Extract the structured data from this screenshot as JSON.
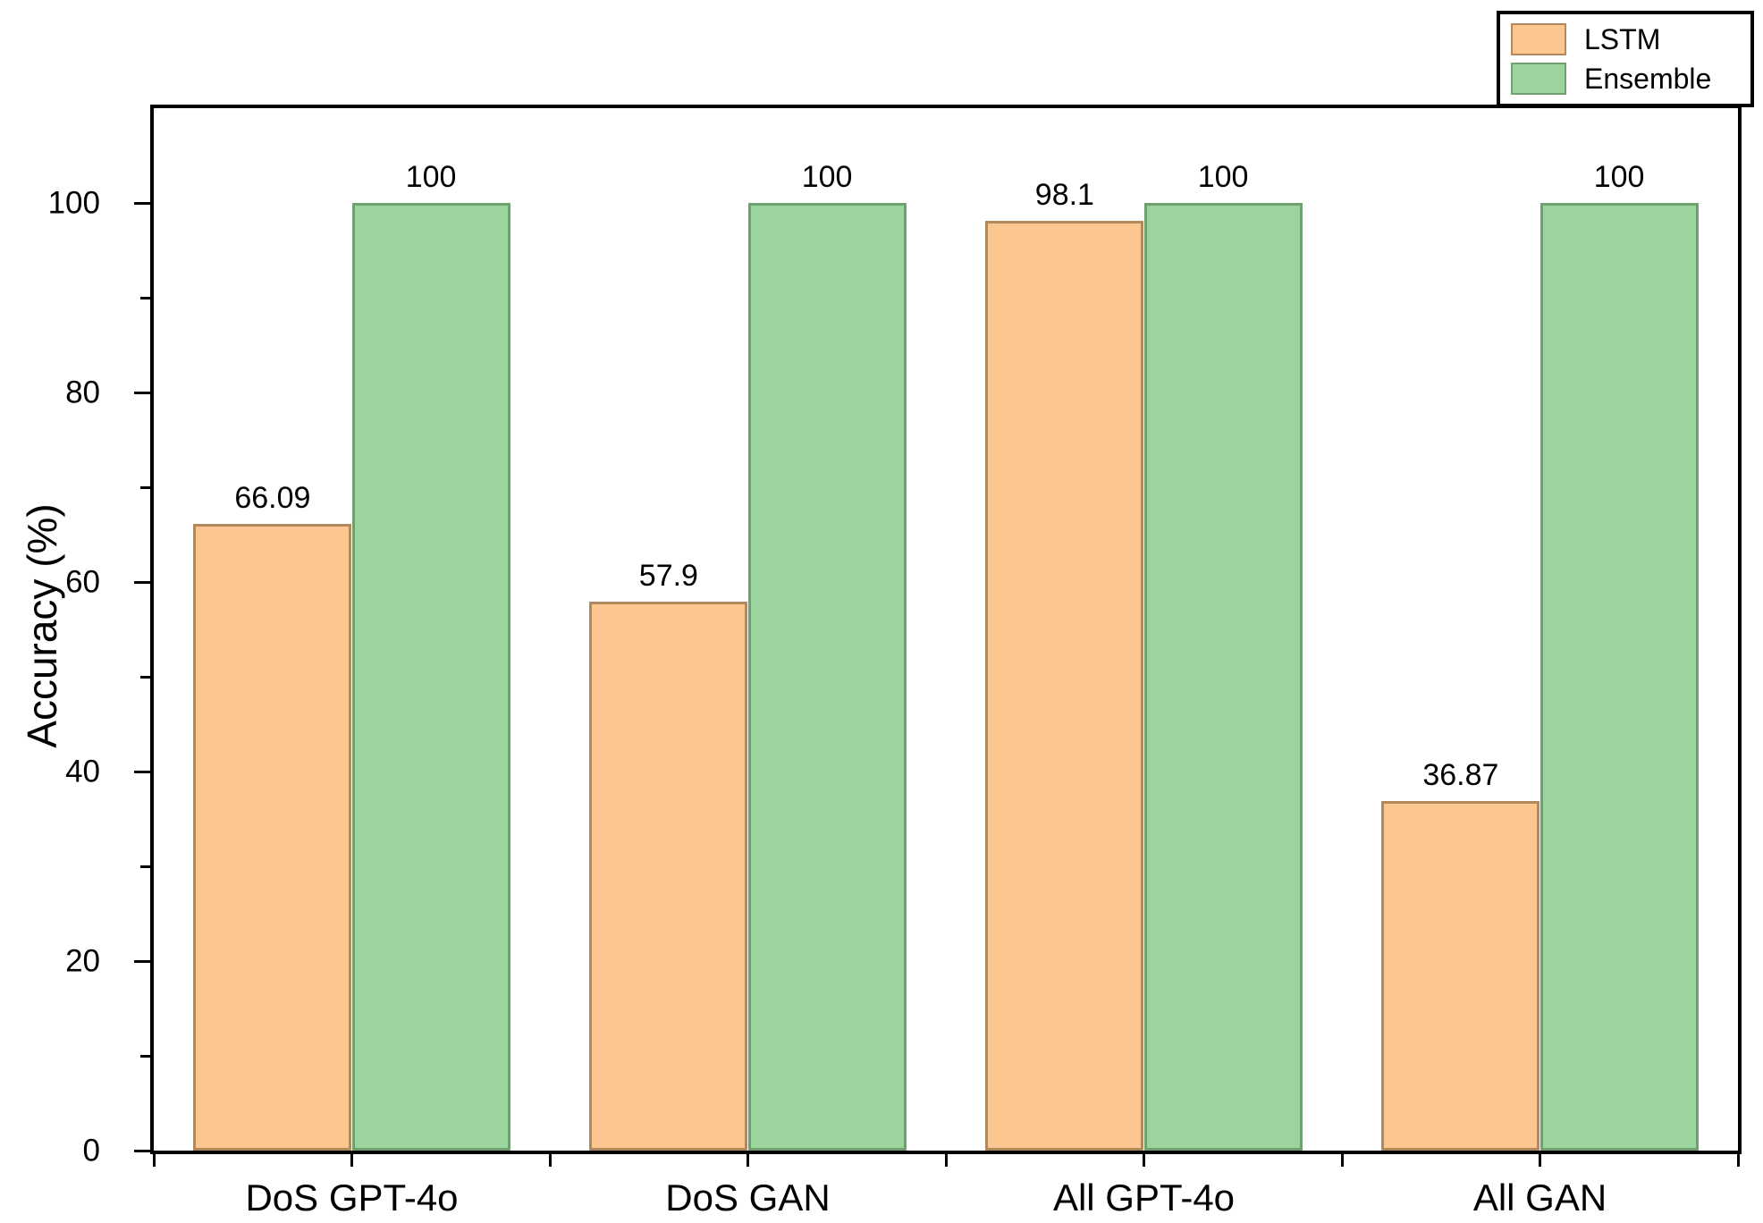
{
  "chart_data": {
    "type": "bar",
    "title": "",
    "categories": [
      "DoS GPT-4o",
      "DoS GAN",
      "All GPT-4o",
      "All GAN"
    ],
    "series": [
      {
        "name": "LSTM",
        "values": [
          66.09,
          57.9,
          98.1,
          36.87
        ],
        "value_labels": [
          "66.09",
          "57.9",
          "98.1",
          "36.87"
        ],
        "fill": "#FBC68F",
        "border": "#B1895D"
      },
      {
        "name": "Ensemble",
        "values": [
          100,
          100,
          100,
          100
        ],
        "value_labels": [
          "100",
          "100",
          "100",
          "100"
        ],
        "fill": "#9CD49D",
        "border": "#6FA070"
      }
    ],
    "xlabel": "",
    "ylabel": "Accuracy (%)",
    "ylim": [
      0,
      110
    ],
    "yticks_major": [
      0,
      20,
      40,
      60,
      80,
      100
    ],
    "yticks_minor": [
      10,
      30,
      50,
      70,
      90
    ],
    "grid": false,
    "legend_position": "top-right",
    "bar_value_labels_shown": true
  },
  "colors": {
    "axis": "#000000",
    "text": "#000000",
    "background": "#ffffff"
  }
}
